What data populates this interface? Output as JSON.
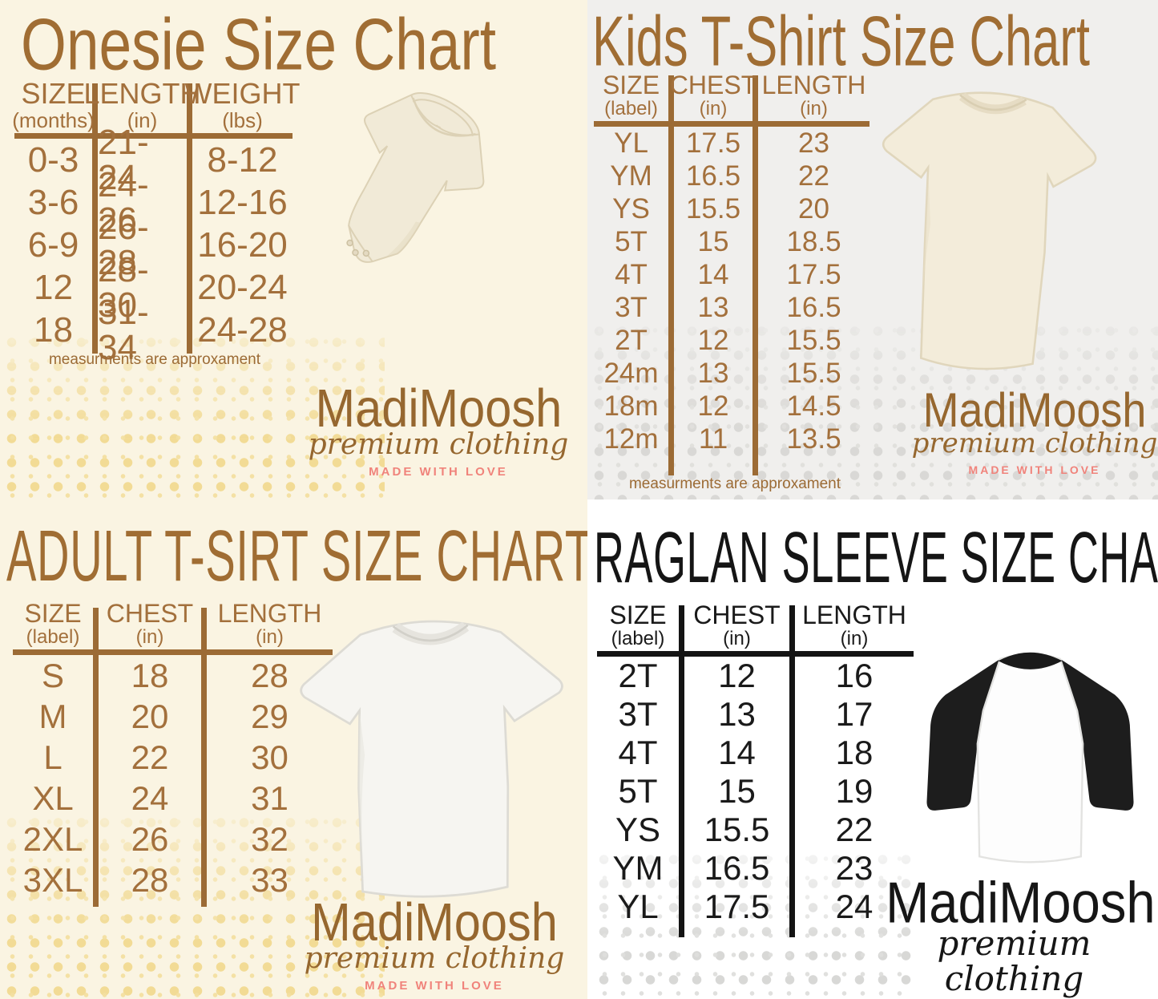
{
  "logo": {
    "name": "MadiMoosh",
    "tagline": "premium clothing",
    "slogan": "MADE WITH LOVE"
  },
  "colors": {
    "brown_text": "#9C6B35",
    "cream_background": "#FAF4E2",
    "gray_background": "#F0EFED",
    "white_background": "#FFFFFF",
    "black_text": "#1A1A1A",
    "salmon_accent": "#F0837B",
    "dot_yellow": "#F3DFA0",
    "dot_gray": "#DEDEDC"
  },
  "panels": {
    "onesie": {
      "title": "Onesie Size Chart",
      "columns": [
        {
          "label": "SIZE",
          "sub": "(months)"
        },
        {
          "label": "LENGTH",
          "sub": "(in)"
        },
        {
          "label": "WEIGHT",
          "sub": "(lbs)"
        }
      ],
      "rows": [
        [
          "0-3",
          "21-24",
          "8-12"
        ],
        [
          "3-6",
          "24-26",
          "12-16"
        ],
        [
          "6-9",
          "26-28",
          "16-20"
        ],
        [
          "12",
          "28-30",
          "20-24"
        ],
        [
          "18",
          "31-34",
          "24-28"
        ]
      ],
      "footnote": "measurments are approxament"
    },
    "kids": {
      "title": "Kids T-Shirt Size Chart",
      "columns": [
        {
          "label": "SIZE",
          "sub": "(label)"
        },
        {
          "label": "CHEST",
          "sub": "(in)"
        },
        {
          "label": "LENGTH",
          "sub": "(in)"
        }
      ],
      "rows": [
        [
          "YL",
          "17.5",
          "23"
        ],
        [
          "YM",
          "16.5",
          "22"
        ],
        [
          "YS",
          "15.5",
          "20"
        ],
        [
          "5T",
          "15",
          "18.5"
        ],
        [
          "4T",
          "14",
          "17.5"
        ],
        [
          "3T",
          "13",
          "16.5"
        ],
        [
          "2T",
          "12",
          "15.5"
        ],
        [
          "24m",
          "13",
          "15.5"
        ],
        [
          "18m",
          "12",
          "14.5"
        ],
        [
          "12m",
          "11",
          "13.5"
        ]
      ],
      "footnote": "measurments are approxament"
    },
    "adult": {
      "title": "ADULT T-SIRT SIZE CHART",
      "columns": [
        {
          "label": "SIZE",
          "sub": "(label)"
        },
        {
          "label": "CHEST",
          "sub": "(in)"
        },
        {
          "label": "LENGTH",
          "sub": "(in)"
        }
      ],
      "rows": [
        [
          "S",
          "18",
          "28"
        ],
        [
          "M",
          "20",
          "29"
        ],
        [
          "L",
          "22",
          "30"
        ],
        [
          "XL",
          "24",
          "31"
        ],
        [
          "2XL",
          "26",
          "32"
        ],
        [
          "3XL",
          "28",
          "33"
        ]
      ]
    },
    "raglan": {
      "title": "RAGLAN SLEEVE SIZE CHART",
      "columns": [
        {
          "label": "SIZE",
          "sub": "(label)"
        },
        {
          "label": "CHEST",
          "sub": "(in)"
        },
        {
          "label": "LENGTH",
          "sub": "(in)"
        }
      ],
      "rows": [
        [
          "2T",
          "12",
          "16"
        ],
        [
          "3T",
          "13",
          "17"
        ],
        [
          "4T",
          "14",
          "18"
        ],
        [
          "5T",
          "15",
          "19"
        ],
        [
          "YS",
          "15.5",
          "22"
        ],
        [
          "YM",
          "16.5",
          "23"
        ],
        [
          "YL",
          "17.5",
          "24"
        ]
      ]
    }
  },
  "chart_data": [
    {
      "type": "table",
      "title": "Onesie Size Chart",
      "columns": [
        "SIZE (months)",
        "LENGTH (in)",
        "WEIGHT (lbs)"
      ],
      "rows": [
        [
          "0-3",
          "21-24",
          "8-12"
        ],
        [
          "3-6",
          "24-26",
          "12-16"
        ],
        [
          "6-9",
          "26-28",
          "16-20"
        ],
        [
          "12",
          "28-30",
          "20-24"
        ],
        [
          "18",
          "31-34",
          "24-28"
        ]
      ],
      "footnote": "measurments are approxament"
    },
    {
      "type": "table",
      "title": "Kids T-Shirt Size Chart",
      "columns": [
        "SIZE (label)",
        "CHEST (in)",
        "LENGTH (in)"
      ],
      "rows": [
        [
          "YL",
          "17.5",
          "23"
        ],
        [
          "YM",
          "16.5",
          "22"
        ],
        [
          "YS",
          "15.5",
          "20"
        ],
        [
          "5T",
          "15",
          "18.5"
        ],
        [
          "4T",
          "14",
          "17.5"
        ],
        [
          "3T",
          "13",
          "16.5"
        ],
        [
          "2T",
          "12",
          "15.5"
        ],
        [
          "24m",
          "13",
          "15.5"
        ],
        [
          "18m",
          "12",
          "14.5"
        ],
        [
          "12m",
          "11",
          "13.5"
        ]
      ],
      "footnote": "measurments are approxament"
    },
    {
      "type": "table",
      "title": "ADULT T-SIRT SIZE CHART",
      "columns": [
        "SIZE (label)",
        "CHEST (in)",
        "LENGTH (in)"
      ],
      "rows": [
        [
          "S",
          "18",
          "28"
        ],
        [
          "M",
          "20",
          "29"
        ],
        [
          "L",
          "22",
          "30"
        ],
        [
          "XL",
          "24",
          "31"
        ],
        [
          "2XL",
          "26",
          "32"
        ],
        [
          "3XL",
          "28",
          "33"
        ]
      ]
    },
    {
      "type": "table",
      "title": "RAGLAN SLEEVE SIZE CHART",
      "columns": [
        "SIZE (label)",
        "CHEST (in)",
        "LENGTH (in)"
      ],
      "rows": [
        [
          "2T",
          "12",
          "16"
        ],
        [
          "3T",
          "13",
          "17"
        ],
        [
          "4T",
          "14",
          "18"
        ],
        [
          "5T",
          "15",
          "19"
        ],
        [
          "YS",
          "15.5",
          "22"
        ],
        [
          "YM",
          "16.5",
          "23"
        ],
        [
          "YL",
          "17.5",
          "24"
        ]
      ]
    }
  ]
}
